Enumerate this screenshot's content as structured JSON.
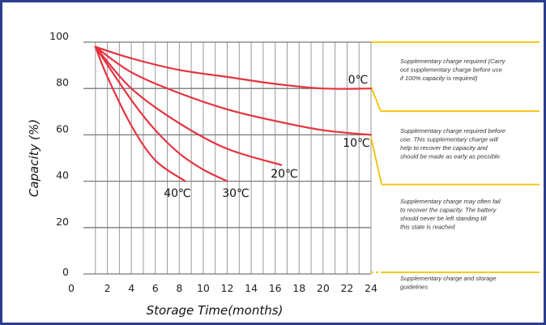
{
  "chart_data": {
    "type": "line",
    "xlabel": "Storage Time(months)",
    "ylabel": "Capacity (%)",
    "xlim": [
      0,
      24
    ],
    "ylim": [
      0,
      100
    ],
    "x_ticks": [
      "0",
      "2",
      "4",
      "6",
      "8",
      "10",
      "12",
      "14",
      "16",
      "18",
      "20",
      "22",
      "24"
    ],
    "y_ticks": [
      "0",
      "20",
      "40",
      "60",
      "80",
      "100"
    ],
    "grid": true,
    "series": [
      {
        "name": "0℃",
        "x": [
          1,
          4,
          8,
          12,
          16,
          20,
          24
        ],
        "y": [
          98,
          93,
          88,
          85,
          82,
          80,
          80
        ]
      },
      {
        "name": "10℃",
        "x": [
          1,
          4,
          8,
          12,
          16,
          20,
          24
        ],
        "y": [
          98,
          87,
          78,
          71,
          66,
          62,
          60
        ]
      },
      {
        "name": "20℃",
        "x": [
          1,
          4,
          8,
          12,
          16.5
        ],
        "y": [
          98,
          80,
          65,
          54,
          47
        ]
      },
      {
        "name": "30℃",
        "x": [
          1,
          4,
          6,
          8,
          10,
          12
        ],
        "y": [
          98,
          75,
          62,
          52,
          45,
          40
        ]
      },
      {
        "name": "40℃",
        "x": [
          1,
          2,
          4,
          6,
          8.5
        ],
        "y": [
          98,
          85,
          64,
          49,
          40
        ]
      }
    ],
    "bands": [
      {
        "y_top": 80,
        "y_bottom": 60,
        "text": "Supplementary charge required (Carry out supplementary charge before use if 100% capacity is required)"
      },
      {
        "y_top": 60,
        "y_bottom": 40,
        "text": "Supplementary charge required before use. This supplementary charge will help to recover the capacity and should be made as early as possible."
      },
      {
        "y_top": 40,
        "y_bottom": 0,
        "text": "Supplementary charge may often fail to recover the capacity. The battery should never be left standing till this state is reached"
      },
      {
        "y_top": 0,
        "y_bottom": null,
        "text": "Supplementary charge and storage guidelines"
      }
    ]
  },
  "colors": {
    "curve": "#e53340",
    "band": "#f2c200",
    "grid": "#9a9a9a",
    "frame": "#2b3d8f"
  }
}
